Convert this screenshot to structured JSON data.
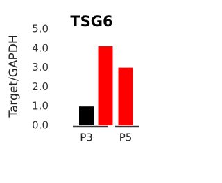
{
  "chart_data": {
    "type": "bar",
    "title": "TSG6",
    "y_label": "Target/GAPDH",
    "categories": [
      "P3",
      null,
      "P5"
    ],
    "values": [
      1.0,
      4.1,
      3.0
    ],
    "colors": [
      "#000000",
      "#ff0000",
      "#ff0000"
    ],
    "ylim": [
      0,
      5
    ],
    "yticks": [
      {
        "value": 0,
        "label": "0.0"
      },
      {
        "value": 1,
        "label": "1.0"
      },
      {
        "value": 2,
        "label": "2.0"
      },
      {
        "value": 3,
        "label": "3.0"
      },
      {
        "value": 4,
        "label": "4.0"
      },
      {
        "value": 5,
        "label": "5.0"
      }
    ]
  }
}
